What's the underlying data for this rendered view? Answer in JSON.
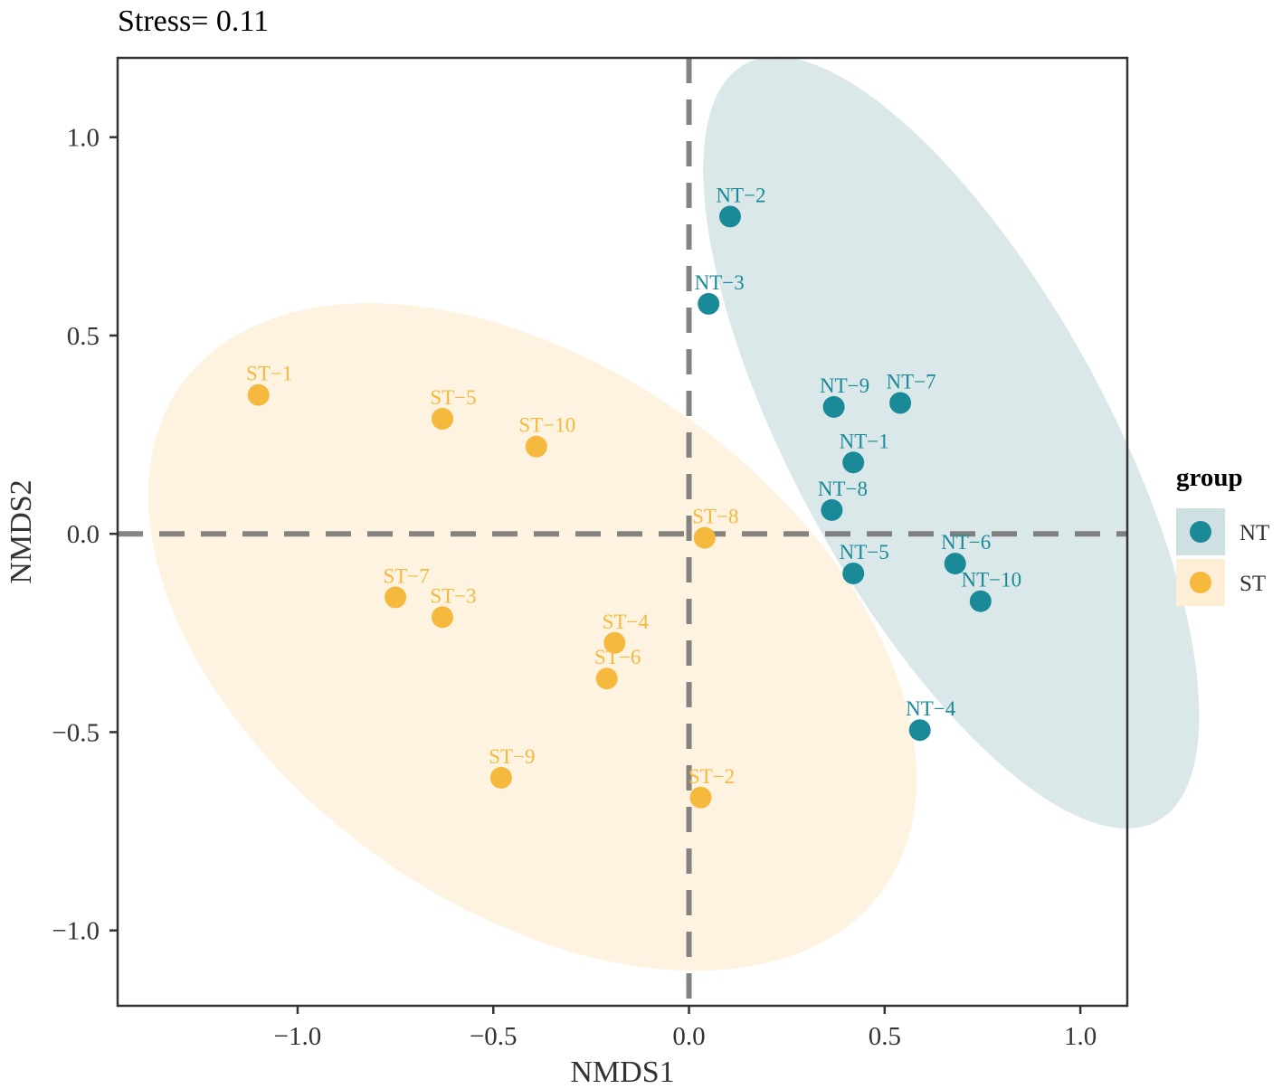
{
  "chart_data": {
    "type": "scatter",
    "title": "Stress= 0.11",
    "xlabel": "NMDS1",
    "ylabel": "NMDS2",
    "xlim": [
      -1.46,
      1.12
    ],
    "ylim": [
      -1.19,
      1.2
    ],
    "xticks": [
      -1.0,
      -0.5,
      0.0,
      0.5,
      1.0
    ],
    "xtick_labels": [
      "−1.0",
      "−0.5",
      "0.0",
      "0.5",
      "1.0"
    ],
    "yticks": [
      1.0,
      0.5,
      0.0,
      -0.5,
      -1.0
    ],
    "ytick_labels": [
      "1.0",
      "0.5",
      "0.0",
      "−0.5",
      "−1.0"
    ],
    "grid": false,
    "reference_lines": {
      "x": 0,
      "y": 0,
      "style": "dashed"
    },
    "legend": {
      "title": "group",
      "position": "right",
      "entries": [
        {
          "name": "NT",
          "color": "#1a8a99"
        },
        {
          "name": "ST",
          "color": "#f5b93e"
        }
      ]
    },
    "series": [
      {
        "name": "NT",
        "color": "#1a8a99",
        "ellipse_fill": "#cfe0e3",
        "ellipse": {
          "cx": 0.67,
          "cy": 0.23,
          "rx": 1.09,
          "ry": 0.4,
          "angle_deg": -61
        },
        "points": [
          {
            "label": "NT−2",
            "x": 0.105,
            "y": 0.8
          },
          {
            "label": "NT−3",
            "x": 0.05,
            "y": 0.58
          },
          {
            "label": "NT−9",
            "x": 0.37,
            "y": 0.32
          },
          {
            "label": "NT−7",
            "x": 0.54,
            "y": 0.33
          },
          {
            "label": "NT−1",
            "x": 0.42,
            "y": 0.18
          },
          {
            "label": "NT−8",
            "x": 0.365,
            "y": 0.06
          },
          {
            "label": "NT−5",
            "x": 0.42,
            "y": -0.1
          },
          {
            "label": "NT−6",
            "x": 0.68,
            "y": -0.075
          },
          {
            "label": "NT−10",
            "x": 0.745,
            "y": -0.17
          },
          {
            "label": "NT−4",
            "x": 0.59,
            "y": -0.495
          }
        ]
      },
      {
        "name": "ST",
        "color": "#f5b93e",
        "ellipse_fill": "#fcefd6",
        "ellipse": {
          "cx": -0.4,
          "cy": -0.26,
          "rx": 1.1,
          "ry": 0.68,
          "angle_deg": -35
        },
        "points": [
          {
            "label": "ST−1",
            "x": -1.1,
            "y": 0.35
          },
          {
            "label": "ST−5",
            "x": -0.63,
            "y": 0.29
          },
          {
            "label": "ST−10",
            "x": -0.39,
            "y": 0.22
          },
          {
            "label": "ST−8",
            "x": 0.04,
            "y": -0.01
          },
          {
            "label": "ST−7",
            "x": -0.75,
            "y": -0.16
          },
          {
            "label": "ST−3",
            "x": -0.63,
            "y": -0.21
          },
          {
            "label": "ST−4",
            "x": -0.19,
            "y": -0.275
          },
          {
            "label": "ST−6",
            "x": -0.21,
            "y": -0.365
          },
          {
            "label": "ST−9",
            "x": -0.48,
            "y": -0.615
          },
          {
            "label": "ST−2",
            "x": 0.03,
            "y": -0.665
          }
        ]
      }
    ]
  }
}
